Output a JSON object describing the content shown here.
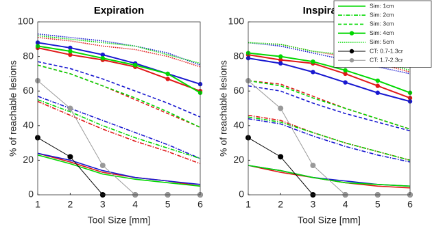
{
  "chart_data": [
    {
      "type": "line",
      "title": "Expiration",
      "xlabel": "Tool Size [mm]",
      "ylabel": "% of reachable lesions",
      "x": [
        1,
        2,
        3,
        4,
        5,
        6
      ],
      "xlim": [
        1,
        6
      ],
      "xticks": [
        1,
        2,
        3,
        4,
        5,
        6
      ],
      "ylim": [
        0,
        100
      ],
      "yticks": [
        0,
        20,
        40,
        60,
        80,
        100
      ],
      "legend": false,
      "series": [
        {
          "name": "Sim: 1cm",
          "color": "#00d800",
          "style": "solid",
          "values": [
            23,
            18,
            12,
            9,
            7,
            5
          ]
        },
        {
          "name": "Sim: 2cm",
          "color": "#00d800",
          "style": "dashdot",
          "values": [
            55,
            48,
            40,
            33,
            27,
            21
          ]
        },
        {
          "name": "Sim: 3cm",
          "color": "#00d800",
          "style": "dashed",
          "values": [
            75,
            70,
            63,
            56,
            48,
            39
          ]
        },
        {
          "name": "Sim: 4cm",
          "color": "#00d800",
          "style": "solid",
          "marker": true,
          "values": [
            86,
            83,
            79,
            75,
            70,
            59
          ]
        },
        {
          "name": "Sim: 5cm",
          "color": "#00d800",
          "style": "dotted",
          "values": [
            92,
            90,
            88,
            86,
            81,
            76
          ]
        },
        {
          "name": "CT: 0.7-1.3cr",
          "color": "#000000",
          "style": "thin",
          "marker": true,
          "values": [
            33,
            22,
            0,
            0,
            0,
            0
          ]
        },
        {
          "name": "CT: 1.7-2.3cr",
          "color": "#999999",
          "style": "thin",
          "marker": true,
          "values": [
            66,
            50,
            17,
            0,
            0,
            0
          ]
        },
        {
          "color": "#e01818",
          "style": "solid",
          "values": [
            24,
            19,
            13,
            10,
            8,
            5
          ]
        },
        {
          "color": "#e01818",
          "style": "dashdot",
          "values": [
            54,
            46,
            38,
            31,
            25,
            18
          ]
        },
        {
          "color": "#e01818",
          "style": "dashed",
          "values": [
            75,
            70,
            63,
            55,
            47,
            39
          ]
        },
        {
          "color": "#e01818",
          "style": "solid",
          "marker": true,
          "values": [
            85,
            81,
            78,
            74,
            67,
            60
          ]
        },
        {
          "color": "#e01818",
          "style": "dotted",
          "values": [
            91,
            89,
            86,
            84,
            80,
            74
          ]
        },
        {
          "color": "#1818d0",
          "style": "solid",
          "values": [
            24,
            20,
            14,
            10,
            8,
            6
          ]
        },
        {
          "color": "#1818d0",
          "style": "dashdot",
          "values": [
            57,
            50,
            43,
            36,
            29,
            21
          ]
        },
        {
          "color": "#1818d0",
          "style": "dashed",
          "values": [
            77,
            73,
            67,
            60,
            53,
            45
          ]
        },
        {
          "color": "#1818d0",
          "style": "solid",
          "marker": true,
          "values": [
            88,
            85,
            81,
            76,
            70,
            64
          ]
        },
        {
          "color": "#1818d0",
          "style": "dotted",
          "values": [
            93,
            91,
            89,
            86,
            82,
            75
          ]
        }
      ]
    },
    {
      "type": "line",
      "title": "Inspiration",
      "xlabel": "Tool Size [mm]",
      "ylabel": "% of reachable lesions",
      "x": [
        1,
        2,
        3,
        4,
        5,
        6
      ],
      "xlim": [
        1,
        6
      ],
      "xticks": [
        1,
        2,
        3,
        4,
        5,
        6
      ],
      "ylim": [
        0,
        100
      ],
      "yticks": [
        0,
        20,
        40,
        60,
        80,
        100
      ],
      "legend": "northeast",
      "series": [
        {
          "name": "Sim: 1cm",
          "color": "#00d800",
          "style": "solid",
          "values": [
            17,
            14,
            10,
            7,
            6,
            5
          ]
        },
        {
          "name": "Sim: 2cm",
          "color": "#00d800",
          "style": "dashdot",
          "values": [
            45,
            42,
            36,
            30,
            25,
            20
          ]
        },
        {
          "name": "Sim: 3cm",
          "color": "#00d800",
          "style": "dashed",
          "values": [
            66,
            63,
            56,
            50,
            44,
            38
          ]
        },
        {
          "name": "Sim: 4cm",
          "color": "#00d800",
          "style": "solid",
          "marker": true,
          "values": [
            82,
            80,
            77,
            72,
            66,
            59
          ]
        },
        {
          "name": "Sim: 5cm",
          "color": "#00d800",
          "style": "dotted",
          "values": [
            88,
            87,
            83,
            81,
            77,
            72
          ]
        },
        {
          "name": "CT: 0.7-1.3cr",
          "color": "#000000",
          "style": "thin",
          "marker": true,
          "values": [
            33,
            22,
            0,
            0,
            0,
            0
          ]
        },
        {
          "name": "CT: 1.7-2.3cr",
          "color": "#999999",
          "style": "thin",
          "marker": true,
          "values": [
            66,
            50,
            17,
            0,
            0,
            0
          ]
        },
        {
          "color": "#e01818",
          "style": "solid",
          "values": [
            17,
            13,
            10,
            7,
            5,
            4
          ]
        },
        {
          "color": "#e01818",
          "style": "dashdot",
          "values": [
            46,
            43,
            36,
            30,
            25,
            20
          ]
        },
        {
          "color": "#e01818",
          "style": "dashed",
          "values": [
            66,
            64,
            57,
            50,
            44,
            38
          ]
        },
        {
          "color": "#e01818",
          "style": "solid",
          "marker": true,
          "values": [
            81,
            78,
            76,
            70,
            63,
            56
          ]
        },
        {
          "color": "#e01818",
          "style": "dotted",
          "values": [
            88,
            87,
            83,
            80,
            76,
            71
          ]
        },
        {
          "color": "#1818d0",
          "style": "solid",
          "values": [
            17,
            14,
            10,
            8,
            6,
            5
          ]
        },
        {
          "color": "#1818d0",
          "style": "dashdot",
          "values": [
            44,
            41,
            34,
            28,
            23,
            19
          ]
        },
        {
          "color": "#1818d0",
          "style": "dashed",
          "values": [
            63,
            60,
            53,
            47,
            42,
            37
          ]
        },
        {
          "color": "#1818d0",
          "style": "solid",
          "marker": true,
          "values": [
            79,
            76,
            71,
            65,
            59,
            54
          ]
        },
        {
          "color": "#1818d0",
          "style": "dotted",
          "values": [
            88,
            86,
            82,
            78,
            74,
            70
          ]
        }
      ]
    }
  ]
}
